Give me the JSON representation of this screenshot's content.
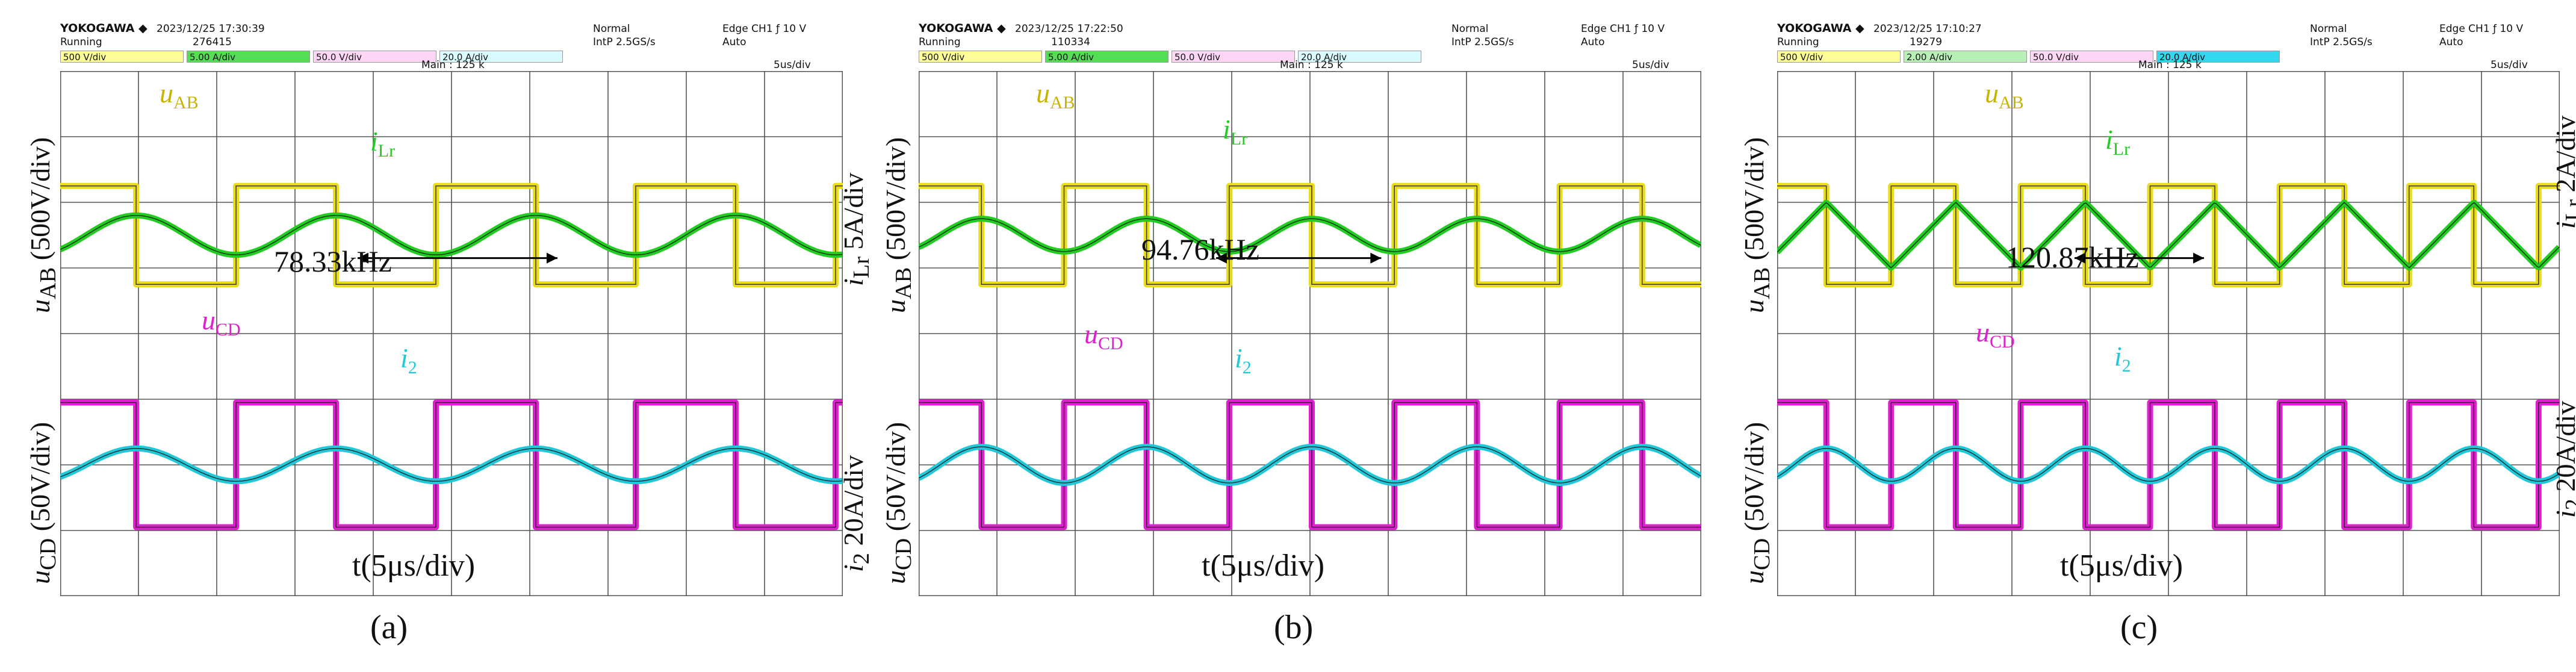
{
  "colors": {
    "uAB": "#e8dc1c",
    "iLr": "#22cc22",
    "uCD": "#e020d0",
    "i2": "#22c8d8",
    "grid": "#555555",
    "trace_dark": "#111111"
  },
  "common": {
    "brand": "YOKOGAWA ◆",
    "status": "Running",
    "mode": "Normal",
    "sample": "IntP 2.5GS/s",
    "trigger": "Edge CH1 ƒ 10 V",
    "auto": "Auto",
    "main": "Main : 125 k",
    "timebase": "5us/div",
    "ch1_box": "500 V/div",
    "ch3_box": "50.0 V/div",
    "x_axis_label": "t(5μs/div)",
    "u_ab_axis": "u",
    "u_ab_sub": "AB",
    "u_ab_scale": " (500V/div)",
    "u_cd_axis": "u",
    "u_cd_sub": "CD",
    "u_cd_scale": " (50V/div)",
    "i2_axis": "i",
    "i2_sub": "2",
    "i2_scale": " 20A/div",
    "ilr_axis": "i",
    "ilr_sub": "Lr",
    "trace_uab": "u",
    "trace_uab_sub": "AB",
    "trace_ilr": "i",
    "trace_ilr_sub": "Lr",
    "trace_ucd": "u",
    "trace_ucd_sub": "CD",
    "trace_i2": "i",
    "trace_i2_sub": "2"
  },
  "chart_data": [
    {
      "type": "line",
      "panel_label": "(a)",
      "timestamp": "2023/12/25 17:30:39",
      "count": "276415",
      "ch2_box": "5.00 A/div",
      "ch4_box": "20.0 A/div",
      "ilr_scale": " 5A/div",
      "frequency_label": "78.33kHz",
      "frequency_khz": 78.33,
      "xlabel": "t(5μs/div)",
      "x_range_us": [
        0,
        50
      ],
      "series": [
        {
          "name": "uAB",
          "unit": "V",
          "scale_per_div": 500,
          "waveform": "square",
          "amplitude_div": 1.5,
          "center_div": 1.5
        },
        {
          "name": "iLr",
          "unit": "A",
          "scale_per_div": 5,
          "waveform": "sine",
          "amplitude_div": 0.6,
          "center_div": 1.5
        },
        {
          "name": "uCD",
          "unit": "V",
          "scale_per_div": 50,
          "waveform": "square",
          "amplitude_div": 1.9,
          "center_div": -2.0
        },
        {
          "name": "i2",
          "unit": "A",
          "scale_per_div": 20,
          "waveform": "sine",
          "amplitude_div": 0.5,
          "center_div": -2.0
        }
      ]
    },
    {
      "type": "line",
      "panel_label": "(b)",
      "timestamp": "2023/12/25 17:22:50",
      "count": "110334",
      "ch2_box": "5.00 A/div",
      "ch4_box": "20.0 A/div",
      "ilr_scale": " 5A/div",
      "frequency_label": "94.76kHz",
      "frequency_khz": 94.76,
      "xlabel": "t(5μs/div)",
      "x_range_us": [
        0,
        50
      ],
      "series": [
        {
          "name": "uAB",
          "unit": "V",
          "scale_per_div": 500,
          "waveform": "square",
          "amplitude_div": 1.5,
          "center_div": 1.5
        },
        {
          "name": "iLr",
          "unit": "A",
          "scale_per_div": 5,
          "waveform": "sine",
          "amplitude_div": 0.5,
          "center_div": 1.5
        },
        {
          "name": "uCD",
          "unit": "V",
          "scale_per_div": 50,
          "waveform": "square",
          "amplitude_div": 1.9,
          "center_div": -2.0
        },
        {
          "name": "i2",
          "unit": "A",
          "scale_per_div": 20,
          "waveform": "sine",
          "amplitude_div": 0.55,
          "center_div": -2.0
        }
      ]
    },
    {
      "type": "line",
      "panel_label": "(c)",
      "timestamp": "2023/12/25 17:10:27",
      "count": "19279",
      "ch2_box": "2.00 A/div",
      "ch4_box": "20.0 A/div",
      "ilr_scale": " 2A/div",
      "frequency_label": "120.87kHz",
      "frequency_khz": 120.87,
      "xlabel": "t(5μs/div)",
      "x_range_us": [
        0,
        50
      ],
      "series": [
        {
          "name": "uAB",
          "unit": "V",
          "scale_per_div": 500,
          "waveform": "square",
          "amplitude_div": 1.5,
          "center_div": 1.5
        },
        {
          "name": "iLr",
          "unit": "A",
          "scale_per_div": 2,
          "waveform": "triangle",
          "amplitude_div": 1.0,
          "center_div": 1.5
        },
        {
          "name": "uCD",
          "unit": "V",
          "scale_per_div": 50,
          "waveform": "square",
          "amplitude_div": 1.9,
          "center_div": -2.0
        },
        {
          "name": "i2",
          "unit": "A",
          "scale_per_div": 20,
          "waveform": "sine",
          "amplitude_div": 0.5,
          "center_div": -2.0
        }
      ]
    }
  ]
}
